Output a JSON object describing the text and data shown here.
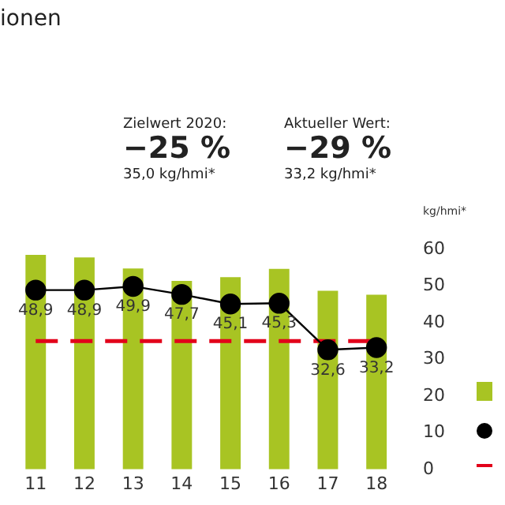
{
  "chart_data": {
    "type": "bar",
    "title": "ionen",
    "ylabel": "kg/hmi*",
    "annotations": [
      "Zielwert 2020:",
      "−25 %",
      "35,0 kg/hmi*",
      "Aktueller Wert:",
      "−29 %",
      "33,2 kg/hmi*"
    ],
    "categories": [
      "11",
      "12",
      "13",
      "14",
      "15",
      "16",
      "17",
      "18"
    ],
    "series": [
      {
        "color": "#a8c423",
        "values": [
          58.5,
          57.8,
          54.8,
          51.4,
          52.4,
          54.7,
          48.7,
          47.6
        ]
      },
      {
        "type": "line",
        "color": "#000000",
        "values": [
          48.9,
          48.9,
          49.9,
          47.7,
          45.1,
          45.3,
          32.6,
          33.2
        ],
        "value_labels": [
          "48,9",
          "48,9",
          "49,9",
          "47,7",
          "45,1",
          "45,3",
          "32,6",
          "33,2"
        ]
      }
    ],
    "ref_lines": [
      {
        "axis": "y",
        "value": 35,
        "color": "#e2001a",
        "line_style": "dashed"
      }
    ],
    "ylim": [
      0,
      60
    ],
    "yticks": [
      0,
      10,
      20,
      30,
      40,
      50,
      60
    ],
    "grid": false,
    "marker": "circle"
  }
}
